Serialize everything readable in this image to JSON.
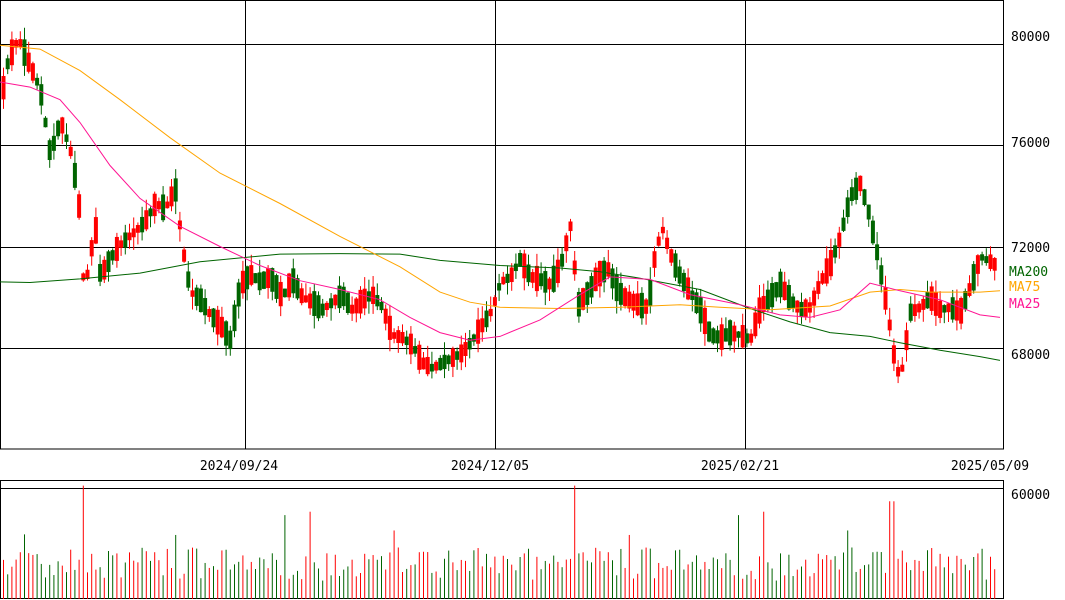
{
  "chart_data": {
    "type": "candlestick",
    "x_tick_labels": [
      "2024/09/24",
      "2024/12/05",
      "2025/02/21",
      "2025/05/09"
    ],
    "price_axis": {
      "ylim": [
        64000,
        81700
      ],
      "ticks": [
        68000,
        72000,
        76000,
        80000
      ],
      "tick_labels": [
        "68000",
        "72000",
        "76000",
        "80000"
      ]
    },
    "volume_axis": {
      "ylim": [
        0,
        64000
      ],
      "ticks": [
        60000
      ],
      "tick_labels": [
        "60000"
      ]
    },
    "grid": true,
    "legend_position": "right",
    "legend": [
      {
        "name": "MA200",
        "color": "#006400"
      },
      {
        "name": "MA75",
        "color": "#ffa500"
      },
      {
        "name": "MA25",
        "color": "#ff1493"
      }
    ],
    "colors": {
      "up": "#ff0000",
      "down": "#006400"
    },
    "series": [
      {
        "name": "MA200",
        "values": [
          [
            0,
            70600
          ],
          [
            30,
            70580
          ],
          [
            80,
            70720
          ],
          [
            140,
            70950
          ],
          [
            200,
            71400
          ],
          [
            280,
            71700
          ],
          [
            340,
            71720
          ],
          [
            400,
            71700
          ],
          [
            440,
            71450
          ],
          [
            500,
            71250
          ],
          [
            560,
            71150
          ],
          [
            600,
            71000
          ],
          [
            640,
            70750
          ],
          [
            700,
            70300
          ],
          [
            750,
            69550
          ],
          [
            790,
            69020
          ],
          [
            830,
            68600
          ],
          [
            870,
            68450
          ],
          [
            900,
            68200
          ],
          [
            940,
            67900
          ],
          [
            980,
            67650
          ],
          [
            1000,
            67500
          ]
        ]
      },
      {
        "name": "MA75",
        "values": [
          [
            0,
            79950
          ],
          [
            40,
            79800
          ],
          [
            80,
            78950
          ],
          [
            120,
            77800
          ],
          [
            170,
            76300
          ],
          [
            220,
            74900
          ],
          [
            280,
            73700
          ],
          [
            340,
            72400
          ],
          [
            400,
            71200
          ],
          [
            440,
            70200
          ],
          [
            470,
            69800
          ],
          [
            500,
            69600
          ],
          [
            560,
            69550
          ],
          [
            620,
            69600
          ],
          [
            680,
            69700
          ],
          [
            720,
            69600
          ],
          [
            770,
            69500
          ],
          [
            830,
            69650
          ],
          [
            870,
            70200
          ],
          [
            900,
            70300
          ],
          [
            930,
            70200
          ],
          [
            980,
            70200
          ],
          [
            1000,
            70250
          ]
        ]
      },
      {
        "name": "MA25",
        "values": [
          [
            0,
            78500
          ],
          [
            30,
            78300
          ],
          [
            60,
            77800
          ],
          [
            80,
            76900
          ],
          [
            110,
            75200
          ],
          [
            140,
            73900
          ],
          [
            180,
            72800
          ],
          [
            220,
            72000
          ],
          [
            260,
            71250
          ],
          [
            300,
            70650
          ],
          [
            340,
            70300
          ],
          [
            380,
            69900
          ],
          [
            410,
            69200
          ],
          [
            440,
            68600
          ],
          [
            470,
            68300
          ],
          [
            500,
            68450
          ],
          [
            540,
            69100
          ],
          [
            580,
            70100
          ],
          [
            610,
            70800
          ],
          [
            650,
            70700
          ],
          [
            690,
            70100
          ],
          [
            740,
            69700
          ],
          [
            780,
            69300
          ],
          [
            810,
            69200
          ],
          [
            840,
            69500
          ],
          [
            870,
            70550
          ],
          [
            900,
            70250
          ],
          [
            940,
            69900
          ],
          [
            980,
            69300
          ],
          [
            1000,
            69200
          ]
        ]
      }
    ]
  }
}
